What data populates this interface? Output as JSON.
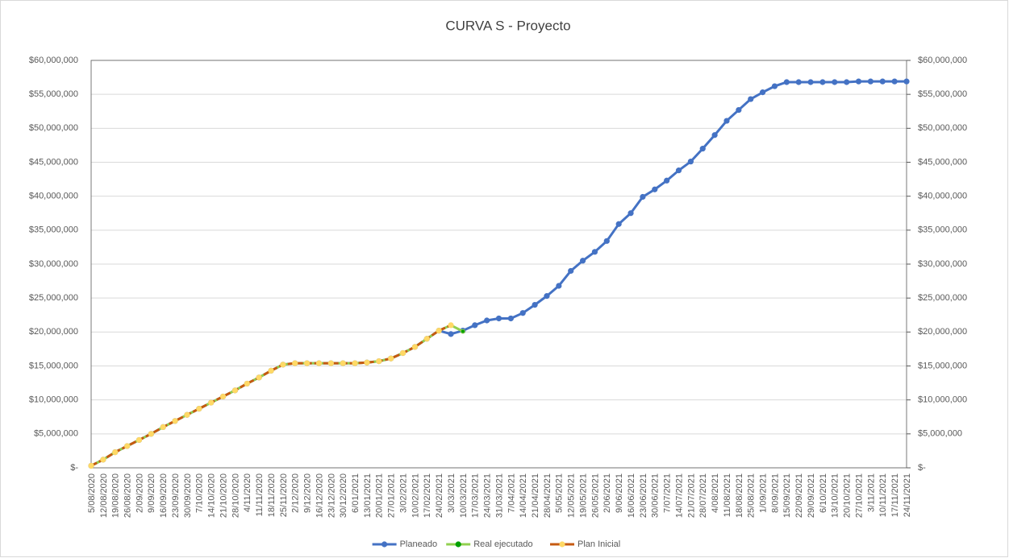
{
  "chart_data": {
    "type": "line",
    "title": "CURVA S - Proyecto",
    "categories": [
      "5/08/2020",
      "12/08/2020",
      "19/08/2020",
      "26/08/2020",
      "2/09/2020",
      "9/09/2020",
      "16/09/2020",
      "23/09/2020",
      "30/09/2020",
      "7/10/2020",
      "14/10/2020",
      "21/10/2020",
      "28/10/2020",
      "4/11/2020",
      "11/11/2020",
      "18/11/2020",
      "25/11/2020",
      "2/12/2020",
      "9/12/2020",
      "16/12/2020",
      "23/12/2020",
      "30/12/2020",
      "6/01/2021",
      "13/01/2021",
      "20/01/2021",
      "27/01/2021",
      "3/02/2021",
      "10/02/2021",
      "17/02/2021",
      "24/02/2021",
      "3/03/2021",
      "10/03/2021",
      "17/03/2021",
      "24/03/2021",
      "31/03/2021",
      "7/04/2021",
      "14/04/2021",
      "21/04/2021",
      "28/04/2021",
      "5/05/2021",
      "12/05/2021",
      "19/05/2021",
      "26/05/2021",
      "2/06/2021",
      "9/06/2021",
      "16/06/2021",
      "23/06/2021",
      "30/06/2021",
      "7/07/2021",
      "14/07/2021",
      "21/07/2021",
      "28/07/2021",
      "4/08/2021",
      "11/08/2021",
      "18/08/2021",
      "25/08/2021",
      "1/09/2021",
      "8/09/2021",
      "15/09/2021",
      "22/09/2021",
      "29/09/2021",
      "6/10/2021",
      "13/10/2021",
      "20/10/2021",
      "27/10/2021",
      "3/11/2021",
      "10/11/2021",
      "17/11/2021",
      "24/11/2021"
    ],
    "series": [
      {
        "name": "Planeado",
        "color": "#4472c4",
        "marker_color": "#4472c4",
        "values": [
          300000,
          1200000,
          2300000,
          3200000,
          4100000,
          5000000,
          6000000,
          6900000,
          7800000,
          8700000,
          9600000,
          10500000,
          11400000,
          12400000,
          13300000,
          14300000,
          15200000,
          15400000,
          15400000,
          15400000,
          15400000,
          15400000,
          15400000,
          15500000,
          15700000,
          16100000,
          16900000,
          17800000,
          19000000,
          20200000,
          19700000,
          20200000,
          21000000,
          21700000,
          22000000,
          22000000,
          22800000,
          24000000,
          25300000,
          26800000,
          29000000,
          30500000,
          31800000,
          33400000,
          35900000,
          37500000,
          39900000,
          41000000,
          42300000,
          43800000,
          45100000,
          47000000,
          49000000,
          51100000,
          52700000,
          54300000,
          55300000,
          56200000,
          56800000,
          56800000,
          56800000,
          56800000,
          56800000,
          56800000,
          56900000,
          56900000,
          56900000,
          56900000,
          56900000
        ]
      },
      {
        "name": "Real ejecutado",
        "color": "#92d050",
        "marker_color": "#00a000",
        "values": [
          300000,
          1200000,
          2300000,
          3200000,
          4100000,
          5000000,
          6000000,
          6900000,
          7800000,
          8700000,
          9600000,
          10500000,
          11400000,
          12400000,
          13300000,
          14300000,
          15200000,
          15400000,
          15400000,
          15400000,
          15400000,
          15400000,
          15400000,
          15500000,
          15700000,
          16100000,
          16900000,
          17800000,
          19000000,
          20200000,
          21000000,
          20100000,
          null,
          null,
          null,
          null,
          null,
          null,
          null,
          null,
          null,
          null,
          null,
          null,
          null,
          null,
          null,
          null,
          null,
          null,
          null,
          null,
          null,
          null,
          null,
          null,
          null,
          null,
          null,
          null,
          null,
          null,
          null,
          null,
          null,
          null,
          null,
          null,
          null
        ]
      },
      {
        "name": "Plan Inicial",
        "color": "#c55a11",
        "marker_color": "#ffd966",
        "values": [
          300000,
          1200000,
          2300000,
          3200000,
          4100000,
          5000000,
          6000000,
          6900000,
          7800000,
          8700000,
          9600000,
          10500000,
          11400000,
          12400000,
          13300000,
          14300000,
          15200000,
          15400000,
          15400000,
          15400000,
          15400000,
          15400000,
          15400000,
          15500000,
          15700000,
          16100000,
          16900000,
          17800000,
          19000000,
          20200000,
          21000000,
          null,
          null,
          null,
          null,
          null,
          null,
          null,
          null,
          null,
          null,
          null,
          null,
          null,
          null,
          null,
          null,
          null,
          null,
          null,
          null,
          null,
          null,
          null,
          null,
          null,
          null,
          null,
          null,
          null,
          null,
          null,
          null,
          null,
          null,
          null,
          null,
          null,
          null
        ]
      }
    ],
    "ylim": [
      0,
      60000000
    ],
    "yticks": [
      {
        "value": 0,
        "label": "$-"
      },
      {
        "value": 5000000,
        "label": "$5,000,000"
      },
      {
        "value": 10000000,
        "label": "$10,000,000"
      },
      {
        "value": 15000000,
        "label": "$15,000,000"
      },
      {
        "value": 20000000,
        "label": "$20,000,000"
      },
      {
        "value": 25000000,
        "label": "$25,000,000"
      },
      {
        "value": 30000000,
        "label": "$30,000,000"
      },
      {
        "value": 35000000,
        "label": "$35,000,000"
      },
      {
        "value": 40000000,
        "label": "$40,000,000"
      },
      {
        "value": 45000000,
        "label": "$45,000,000"
      },
      {
        "value": 50000000,
        "label": "$50,000,000"
      },
      {
        "value": 55000000,
        "label": "$55,000,000"
      },
      {
        "value": 60000000,
        "label": "$60,000,000"
      }
    ],
    "y2lim": [
      0,
      60000000
    ],
    "y2ticks": [
      {
        "value": 0,
        "label": "$-"
      },
      {
        "value": 5000000,
        "label": "$5,000,000"
      },
      {
        "value": 10000000,
        "label": "$10,000,000"
      },
      {
        "value": 15000000,
        "label": "$15,000,000"
      },
      {
        "value": 20000000,
        "label": "$20,000,000"
      },
      {
        "value": 25000000,
        "label": "$25,000,000"
      },
      {
        "value": 30000000,
        "label": "$30,000,000"
      },
      {
        "value": 35000000,
        "label": "$35,000,000"
      },
      {
        "value": 40000000,
        "label": "$40,000,000"
      },
      {
        "value": 45000000,
        "label": "$45,000,000"
      },
      {
        "value": 50000000,
        "label": "$50,000,000"
      },
      {
        "value": 55000000,
        "label": "$55,000,000"
      },
      {
        "value": 60000000,
        "label": "$60,000,000"
      }
    ],
    "grid": true,
    "legend": "bottom"
  }
}
